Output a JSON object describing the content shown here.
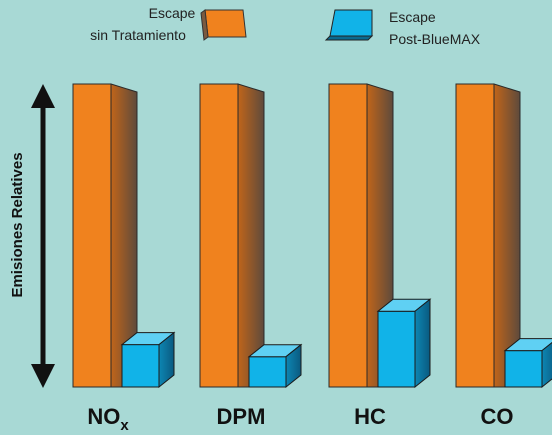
{
  "chart_data": {
    "type": "bar",
    "ylabel": "Emisiones Relatives",
    "categories": [
      "NO",
      "DPM",
      "HC",
      "CO"
    ],
    "category_subscripts": [
      "x",
      "",
      "",
      ""
    ],
    "series": [
      {
        "name": "Escape sin Tratamiento",
        "legend_lines": [
          "Escape",
          "sin Tratamiento"
        ],
        "color": "#f0821e",
        "values": [
          100,
          100,
          100,
          100
        ]
      },
      {
        "name": "Escape Post-BlueMAX",
        "legend_lines": [
          "Escape",
          "Post-BlueMAX"
        ],
        "color": "#11b3e8",
        "values": [
          14,
          10,
          25,
          12
        ]
      }
    ],
    "ylim": [
      0,
      100
    ],
    "grid": false,
    "legend_position": "top"
  }
}
